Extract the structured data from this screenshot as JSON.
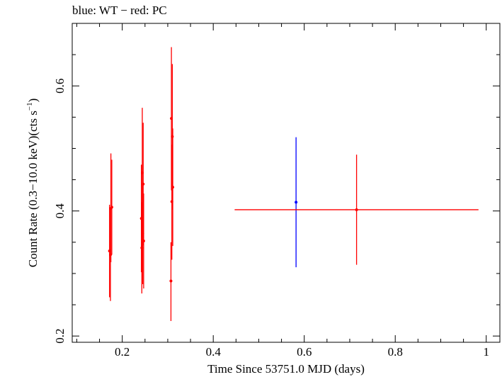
{
  "chart_data": {
    "type": "scatter",
    "title": "blue: WT − red: PC",
    "xlabel": "Time Since 53751.0 MJD (days)",
    "ylabel_main": "Count Rate (0.3−10.0 keV)(cts s",
    "ylabel_sup": "−1",
    "ylabel_end": ")",
    "xlim": [
      0.09,
      1.03
    ],
    "ylim": [
      0.19,
      0.7
    ],
    "xticks": [
      0.2,
      0.4,
      0.6,
      0.8,
      1
    ],
    "xtick_labels": [
      "0.2",
      "0.4",
      "0.6",
      "0.8",
      "1"
    ],
    "yticks": [
      0.2,
      0.4,
      0.6
    ],
    "ytick_labels": [
      "0.2",
      "0.4",
      "0.6"
    ],
    "grid": false,
    "colors": {
      "WT": "#0000ff",
      "PC": "#ff0000"
    },
    "series": [
      {
        "name": "WT",
        "color": "#0000ff",
        "points": [
          {
            "x": 0.582,
            "y": 0.414,
            "xerr": 0.0,
            "ylo": 0.31,
            "yhi": 0.518
          }
        ]
      },
      {
        "name": "PC",
        "color": "#ff0000",
        "points": [
          {
            "x": 0.172,
            "y": 0.336,
            "xerr": 0.001,
            "ylo": 0.262,
            "yhi": 0.41
          },
          {
            "x": 0.174,
            "y": 0.33,
            "xerr": 0.001,
            "ylo": 0.256,
            "yhi": 0.404
          },
          {
            "x": 0.175,
            "y": 0.404,
            "xerr": 0.001,
            "ylo": 0.318,
            "yhi": 0.492
          },
          {
            "x": 0.177,
            "y": 0.406,
            "xerr": 0.001,
            "ylo": 0.33,
            "yhi": 0.482
          },
          {
            "x": 0.242,
            "y": 0.388,
            "xerr": 0.001,
            "ylo": 0.302,
            "yhi": 0.474
          },
          {
            "x": 0.243,
            "y": 0.341,
            "xerr": 0.001,
            "ylo": 0.268,
            "yhi": 0.414
          },
          {
            "x": 0.244,
            "y": 0.461,
            "xerr": 0.001,
            "ylo": 0.358,
            "yhi": 0.565
          },
          {
            "x": 0.245,
            "y": 0.364,
            "xerr": 0.001,
            "ylo": 0.283,
            "yhi": 0.445
          },
          {
            "x": 0.246,
            "y": 0.443,
            "xerr": 0.001,
            "ylo": 0.345,
            "yhi": 0.541
          },
          {
            "x": 0.247,
            "y": 0.352,
            "xerr": 0.001,
            "ylo": 0.276,
            "yhi": 0.428
          },
          {
            "x": 0.307,
            "y": 0.288,
            "xerr": 0.001,
            "ylo": 0.224,
            "yhi": 0.35
          },
          {
            "x": 0.308,
            "y": 0.548,
            "xerr": 0.001,
            "ylo": 0.433,
            "yhi": 0.662
          },
          {
            "x": 0.309,
            "y": 0.415,
            "xerr": 0.001,
            "ylo": 0.322,
            "yhi": 0.506
          },
          {
            "x": 0.31,
            "y": 0.519,
            "xerr": 0.001,
            "ylo": 0.402,
            "yhi": 0.635
          },
          {
            "x": 0.311,
            "y": 0.438,
            "xerr": 0.001,
            "ylo": 0.344,
            "yhi": 0.532
          },
          {
            "x": 0.715,
            "y": 0.402,
            "xerr": 0.268,
            "ylo": 0.314,
            "yhi": 0.49
          }
        ]
      }
    ]
  }
}
